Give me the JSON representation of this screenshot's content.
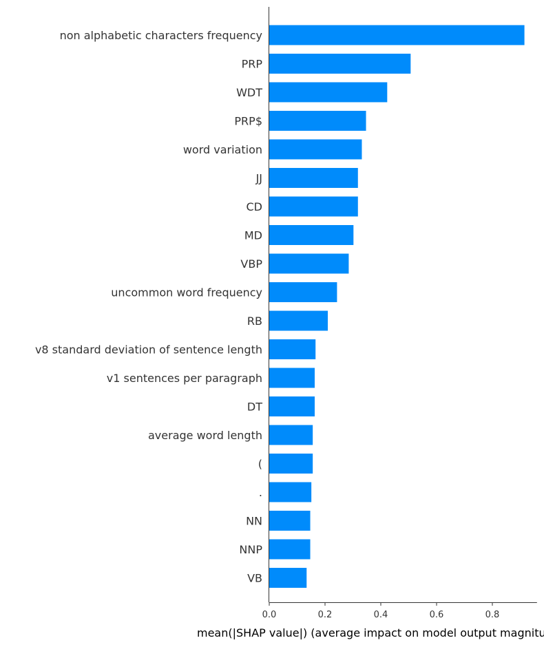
{
  "chart_data": {
    "type": "bar",
    "orientation": "horizontal",
    "categories": [
      "non alphabetic characters frequency",
      "PRP",
      "WDT",
      "PRP$",
      "word variation",
      "JJ",
      "CD",
      "MD",
      "VBP",
      "uncommon word frequency",
      "RB",
      "v8 standard deviation of sentence length",
      "v1 sentences per paragraph",
      "DT",
      "average word length",
      "(",
      ".",
      "NN",
      "NNP",
      "VB"
    ],
    "values": [
      0.915,
      0.507,
      0.423,
      0.347,
      0.332,
      0.318,
      0.318,
      0.302,
      0.285,
      0.243,
      0.21,
      0.166,
      0.163,
      0.163,
      0.156,
      0.156,
      0.151,
      0.147,
      0.147,
      0.134
    ],
    "xlabel": "mean(|SHAP value|) (average impact on model output magnitude)",
    "ylabel": "",
    "title": "",
    "xlim": [
      0,
      0.96
    ],
    "xticks": [
      "0.0",
      "0.2",
      "0.4",
      "0.6",
      "0.8"
    ],
    "xtick_values": [
      0,
      0.2,
      0.4,
      0.6,
      0.8
    ],
    "bar_color": "#008bfb",
    "axis_color": "#333333",
    "grid": false,
    "legend": "none"
  }
}
